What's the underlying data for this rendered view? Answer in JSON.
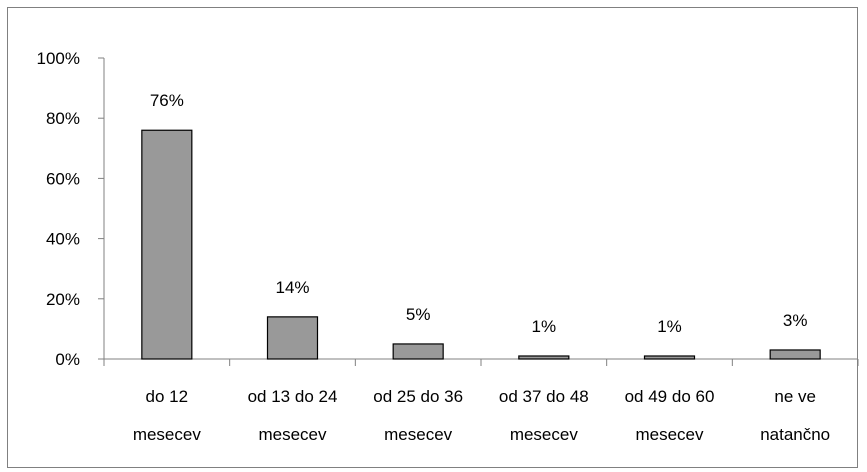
{
  "chart_data": {
    "type": "bar",
    "categories": [
      [
        "do 12",
        "mesecev"
      ],
      [
        "od 13 do 24",
        "mesecev"
      ],
      [
        "od 25 do 36",
        "mesecev"
      ],
      [
        "od 37 do 48",
        "mesecev"
      ],
      [
        "od 49 do 60",
        "mesecev"
      ],
      [
        "ne ve",
        "natančno"
      ]
    ],
    "values": [
      76,
      14,
      5,
      1,
      1,
      3
    ],
    "data_labels": [
      "76%",
      "14%",
      "5%",
      "1%",
      "1%",
      "3%"
    ],
    "y_ticks": [
      "0%",
      "20%",
      "40%",
      "60%",
      "80%",
      "100%"
    ],
    "ylim": [
      0,
      100
    ],
    "title": "",
    "xlabel": "",
    "ylabel": "",
    "grid": false,
    "legend": "none",
    "colors": {
      "bar_fill": "#999999",
      "bar_stroke": "#000000",
      "axis": "#808080",
      "frame": "#808080"
    }
  }
}
